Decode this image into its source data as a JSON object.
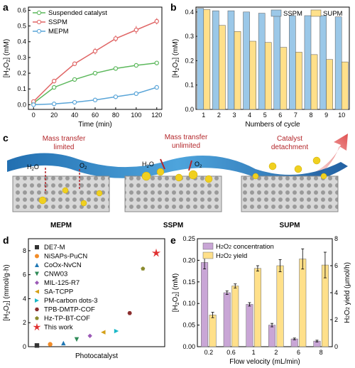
{
  "panels": {
    "a": "a",
    "b": "b",
    "c": "c",
    "d": "d",
    "e": "e"
  },
  "chart_data": [
    {
      "id": "a",
      "type": "line",
      "xlabel": "Time (min)",
      "ylabel": "[H2O2] (mM)",
      "xlim": [
        -5,
        125
      ],
      "ylim": [
        -0.03,
        0.62
      ],
      "xticks": [
        0,
        20,
        40,
        60,
        80,
        100,
        120
      ],
      "yticks": [
        0.0,
        0.1,
        0.2,
        0.3,
        0.4,
        0.5,
        0.6
      ],
      "x": [
        0,
        20,
        40,
        60,
        80,
        100,
        120
      ],
      "legend_position": "top-left",
      "series": [
        {
          "name": "Suspended catalyst",
          "color": "#5cb85c",
          "values": [
            0.01,
            0.11,
            0.16,
            0.2,
            0.23,
            0.25,
            0.265
          ],
          "err": [
            0,
            0.005,
            0.005,
            0.005,
            0.005,
            0.005,
            0.005
          ]
        },
        {
          "name": "SSPM",
          "color": "#e06666",
          "values": [
            0.02,
            0.15,
            0.26,
            0.34,
            0.42,
            0.475,
            0.53
          ],
          "err": [
            0,
            0.005,
            0.01,
            0.02,
            0.02,
            0.025,
            0.02
          ]
        },
        {
          "name": "MEPM",
          "color": "#5aa5d8",
          "values": [
            0.0,
            0.005,
            0.015,
            0.03,
            0.05,
            0.07,
            0.11
          ],
          "err": [
            0,
            0.003,
            0.003,
            0.004,
            0.004,
            0.005,
            0.005
          ]
        }
      ]
    },
    {
      "id": "b",
      "type": "bar",
      "xlabel": "Numbers of cycle",
      "ylabel": "[H2O2] (mM)",
      "categories": [
        "1",
        "2",
        "3",
        "4",
        "5",
        "6",
        "7",
        "8",
        "9",
        "10"
      ],
      "ylim": [
        0,
        0.42
      ],
      "yticks": [
        0.0,
        0.1,
        0.2,
        0.3,
        0.4
      ],
      "legend_position": "top-right",
      "series": [
        {
          "name": "SSPM",
          "color": "#9bc8e8",
          "values": [
            0.415,
            0.405,
            0.405,
            0.4,
            0.395,
            0.395,
            0.385,
            0.385,
            0.385,
            0.38
          ]
        },
        {
          "name": "SUPM",
          "color": "#ffe08a",
          "values": [
            0.41,
            0.345,
            0.32,
            0.28,
            0.275,
            0.255,
            0.235,
            0.225,
            0.205,
            0.195
          ]
        }
      ]
    },
    {
      "id": "d",
      "type": "scatter",
      "xlabel": "Photocatalyst",
      "ylabel": "[H2O2] (mmol/g·h)",
      "ylim": [
        0,
        9
      ],
      "yticks": [
        0,
        2,
        4,
        6,
        8
      ],
      "legend_position": "top-left",
      "series": [
        {
          "name": "DE7-M",
          "color": "#333333",
          "marker": "square",
          "values": [
            0.1
          ]
        },
        {
          "name": "NiSAPs-PuCN",
          "color": "#f28c28",
          "marker": "circle",
          "values": [
            0.2
          ]
        },
        {
          "name": "CoOx-NvCN",
          "color": "#1f77b4",
          "marker": "triangle-up",
          "values": [
            0.3
          ]
        },
        {
          "name": "CNW03",
          "color": "#2e8b57",
          "marker": "triangle-down",
          "values": [
            0.6
          ]
        },
        {
          "name": "MIL-125-R7",
          "color": "#9b59b6",
          "marker": "diamond",
          "values": [
            0.9
          ]
        },
        {
          "name": "SA-TCPP",
          "color": "#d4a017",
          "marker": "triangle-left",
          "values": [
            1.2
          ]
        },
        {
          "name": "PM-carbon dots-3",
          "color": "#1ab8c8",
          "marker": "triangle-right",
          "values": [
            1.3
          ]
        },
        {
          "name": "TPB-DMTP-COF",
          "color": "#8b2e2e",
          "marker": "hexagon",
          "values": [
            2.8
          ]
        },
        {
          "name": "Hz-TP-BT-COF",
          "color": "#8b8b2e",
          "marker": "pentagon",
          "values": [
            6.5
          ]
        },
        {
          "name": "This work",
          "color": "#e03030",
          "marker": "star",
          "values": [
            7.8
          ]
        }
      ]
    },
    {
      "id": "e",
      "type": "bar",
      "xlabel": "Flow velocity (mL/min)",
      "ylabel": "[H2O2] (mM)",
      "y2label": "H2O2 yield (μmol/h)",
      "categories": [
        "0.2",
        "0.6",
        "1",
        "2",
        "6",
        "8"
      ],
      "ylim": [
        0,
        0.25
      ],
      "yticks": [
        0.0,
        0.05,
        0.1,
        0.15,
        0.2,
        0.25
      ],
      "y2lim": [
        0,
        8
      ],
      "y2ticks": [
        0,
        2,
        4,
        6,
        8
      ],
      "legend_position": "top-left",
      "series": [
        {
          "name": "H2O2 concentration",
          "axis": "left",
          "color": "#c9a6d6",
          "values": [
            0.195,
            0.125,
            0.098,
            0.05,
            0.018,
            0.013
          ],
          "err": [
            0.015,
            0.004,
            0.004,
            0.004,
            0.002,
            0.002
          ]
        },
        {
          "name": "H2O2 yield",
          "axis": "right",
          "color": "#ffe08a",
          "values": [
            2.35,
            4.5,
            5.8,
            6.0,
            6.5,
            6.05
          ],
          "err": [
            0.2,
            0.15,
            0.2,
            0.45,
            0.75,
            0.95
          ]
        }
      ]
    }
  ],
  "schematic": {
    "labels": {
      "mepm": "MEPM",
      "sspm": "SSPM",
      "supm": "SUPM",
      "mt_limited": "Mass transfer\nlimited",
      "mt_unlimited": "Mass transfer\nunlimited",
      "detach": "Catalyst\ndetachment",
      "h2o": "H2O",
      "o2": "O2"
    }
  }
}
